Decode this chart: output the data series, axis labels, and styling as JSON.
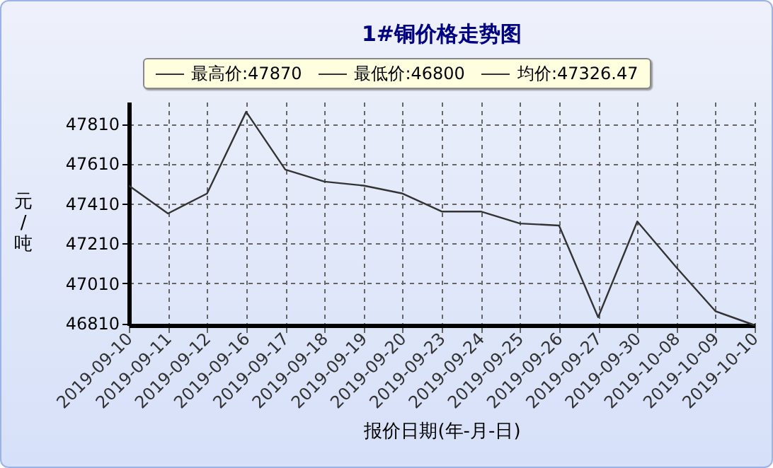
{
  "chart_data": {
    "type": "line",
    "title": "1#铜价格走势图",
    "xlabel": "报价日期(年-月-日)",
    "ylabel": "元/吨",
    "annotations": [
      "最高价:47870",
      "最低价:46800",
      "均价:47326.47"
    ],
    "categories": [
      "2019-09-10",
      "2019-09-11",
      "2019-09-12",
      "2019-09-16",
      "2019-09-17",
      "2019-09-18",
      "2019-09-19",
      "2019-09-20",
      "2019-09-23",
      "2019-09-24",
      "2019-09-25",
      "2019-09-26",
      "2019-09-27",
      "2019-09-30",
      "2019-10-08",
      "2019-10-09",
      "2019-10-10"
    ],
    "series": [
      {
        "color": "#333333",
        "values": [
          47500,
          47360,
          47460,
          47870,
          47580,
          47520,
          47500,
          47460,
          47370,
          47370,
          47310,
          47300,
          46840,
          47320,
          47090,
          46870,
          46800
        ]
      }
    ],
    "ylim": [
      46800,
      47920
    ],
    "yticks": [
      46810,
      47010,
      47210,
      47410,
      47610,
      47810
    ],
    "grid": true,
    "line_style": "solid",
    "marker": "none"
  }
}
